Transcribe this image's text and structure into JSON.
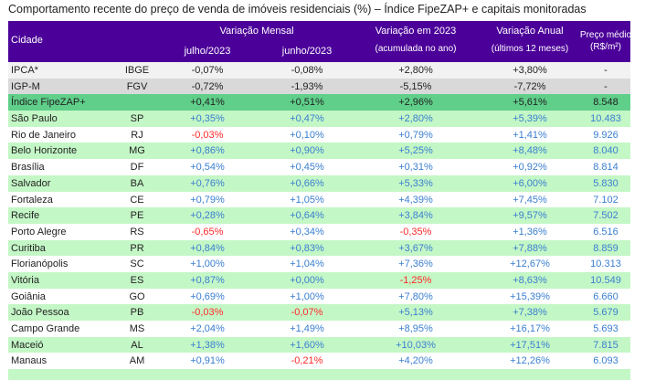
{
  "title": "Comportamento recente do preço de venda de imóveis residenciais (%) – Índice FipeZAP+ e capitais monitoradas",
  "header": {
    "cidade": "Cidade",
    "mensal": "Variação Mensal",
    "julho": "julho/2023",
    "junho": "junho/2023",
    "ano": "Variação em 2023",
    "ano_sub": "(acumulada no ano)",
    "anual": "Variação Anual",
    "anual_sub": "(últimos 12 meses)",
    "preco": "Preço médio",
    "preco_sub": "(R$/m²)"
  },
  "colors": {
    "header": "#4b0099",
    "positive": "#3a7fd0",
    "negative": "#ff2a2a",
    "ipca": "#f2f2f2",
    "igpm": "#d9d9d9",
    "fipezap": "#5fcf8a",
    "band": "#c4f7c6"
  },
  "rows": [
    {
      "name": "IPCA*",
      "uf": "IBGE",
      "jul": "-0,07%",
      "jun": "-0,08%",
      "ano": "+2,80%",
      "anual": "+3,80%",
      "preco": "-",
      "kind": "ipca"
    },
    {
      "name": "IGP-M",
      "uf": "FGV",
      "jul": "-0,72%",
      "jun": "-1,93%",
      "ano": "-5,15%",
      "anual": "-7,72%",
      "preco": "-",
      "kind": "igpm"
    },
    {
      "name": "Índice FipeZAP+",
      "uf": "",
      "jul": "+0,41%",
      "jun": "+0,51%",
      "ano": "+2,96%",
      "anual": "+5,61%",
      "preco": "8.548",
      "kind": "fipezap"
    },
    {
      "name": "São Paulo",
      "uf": "SP",
      "jul": "+0,35%",
      "jun": "+0,47%",
      "ano": "+2,80%",
      "anual": "+5,39%",
      "preco": "10.483",
      "kind": "band"
    },
    {
      "name": "Rio de Janeiro",
      "uf": "RJ",
      "jul": "-0,03%",
      "jun": "+0,10%",
      "ano": "+0,79%",
      "anual": "+1,41%",
      "preco": "9.926",
      "kind": "white"
    },
    {
      "name": "Belo Horizonte",
      "uf": "MG",
      "jul": "+0,86%",
      "jun": "+0,90%",
      "ano": "+5,25%",
      "anual": "+8,48%",
      "preco": "8.040",
      "kind": "band"
    },
    {
      "name": "Brasília",
      "uf": "DF",
      "jul": "+0,54%",
      "jun": "+0,45%",
      "ano": "+0,31%",
      "anual": "+0,92%",
      "preco": "8.814",
      "kind": "white"
    },
    {
      "name": "Salvador",
      "uf": "BA",
      "jul": "+0,76%",
      "jun": "+0,66%",
      "ano": "+5,33%",
      "anual": "+6,00%",
      "preco": "5.830",
      "kind": "band"
    },
    {
      "name": "Fortaleza",
      "uf": "CE",
      "jul": "+0,79%",
      "jun": "+1,05%",
      "ano": "+4,39%",
      "anual": "+7,45%",
      "preco": "7.102",
      "kind": "white"
    },
    {
      "name": "Recife",
      "uf": "PE",
      "jul": "+0,28%",
      "jun": "+0,64%",
      "ano": "+3,84%",
      "anual": "+9,57%",
      "preco": "7.502",
      "kind": "band"
    },
    {
      "name": "Porto Alegre",
      "uf": "RS",
      "jul": "-0,65%",
      "jun": "+0,34%",
      "ano": "-0,35%",
      "anual": "+1,36%",
      "preco": "6.516",
      "kind": "white"
    },
    {
      "name": "Curitiba",
      "uf": "PR",
      "jul": "+0,84%",
      "jun": "+0,83%",
      "ano": "+3,67%",
      "anual": "+7,88%",
      "preco": "8.859",
      "kind": "band"
    },
    {
      "name": "Florianópolis",
      "uf": "SC",
      "jul": "+1,00%",
      "jun": "+1,04%",
      "ano": "+7,36%",
      "anual": "+12,67%",
      "preco": "10.313",
      "kind": "white"
    },
    {
      "name": "Vitória",
      "uf": "ES",
      "jul": "+0,87%",
      "jun": "+0,00%",
      "ano": "-1,25%",
      "anual": "+8,63%",
      "preco": "10.549",
      "kind": "band"
    },
    {
      "name": "Goiânia",
      "uf": "GO",
      "jul": "+0,69%",
      "jun": "+1,00%",
      "ano": "+7,80%",
      "anual": "+15,39%",
      "preco": "6.660",
      "kind": "white"
    },
    {
      "name": "João Pessoa",
      "uf": "PB",
      "jul": "-0,03%",
      "jun": "-0,07%",
      "ano": "+5,13%",
      "anual": "+7,38%",
      "preco": "5.679",
      "kind": "band"
    },
    {
      "name": "Campo Grande",
      "uf": "MS",
      "jul": "+2,04%",
      "jun": "+1,49%",
      "ano": "+8,95%",
      "anual": "+16,17%",
      "preco": "5.693",
      "kind": "white"
    },
    {
      "name": "Maceió",
      "uf": "AL",
      "jul": "+1,38%",
      "jun": "+1,60%",
      "ano": "+10,03%",
      "anual": "+17,51%",
      "preco": "7.815",
      "kind": "band"
    },
    {
      "name": "Manaus",
      "uf": "AM",
      "jul": "+0,91%",
      "jun": "-0,21%",
      "ano": "+4,20%",
      "anual": "+12,26%",
      "preco": "6.093",
      "kind": "white"
    }
  ]
}
